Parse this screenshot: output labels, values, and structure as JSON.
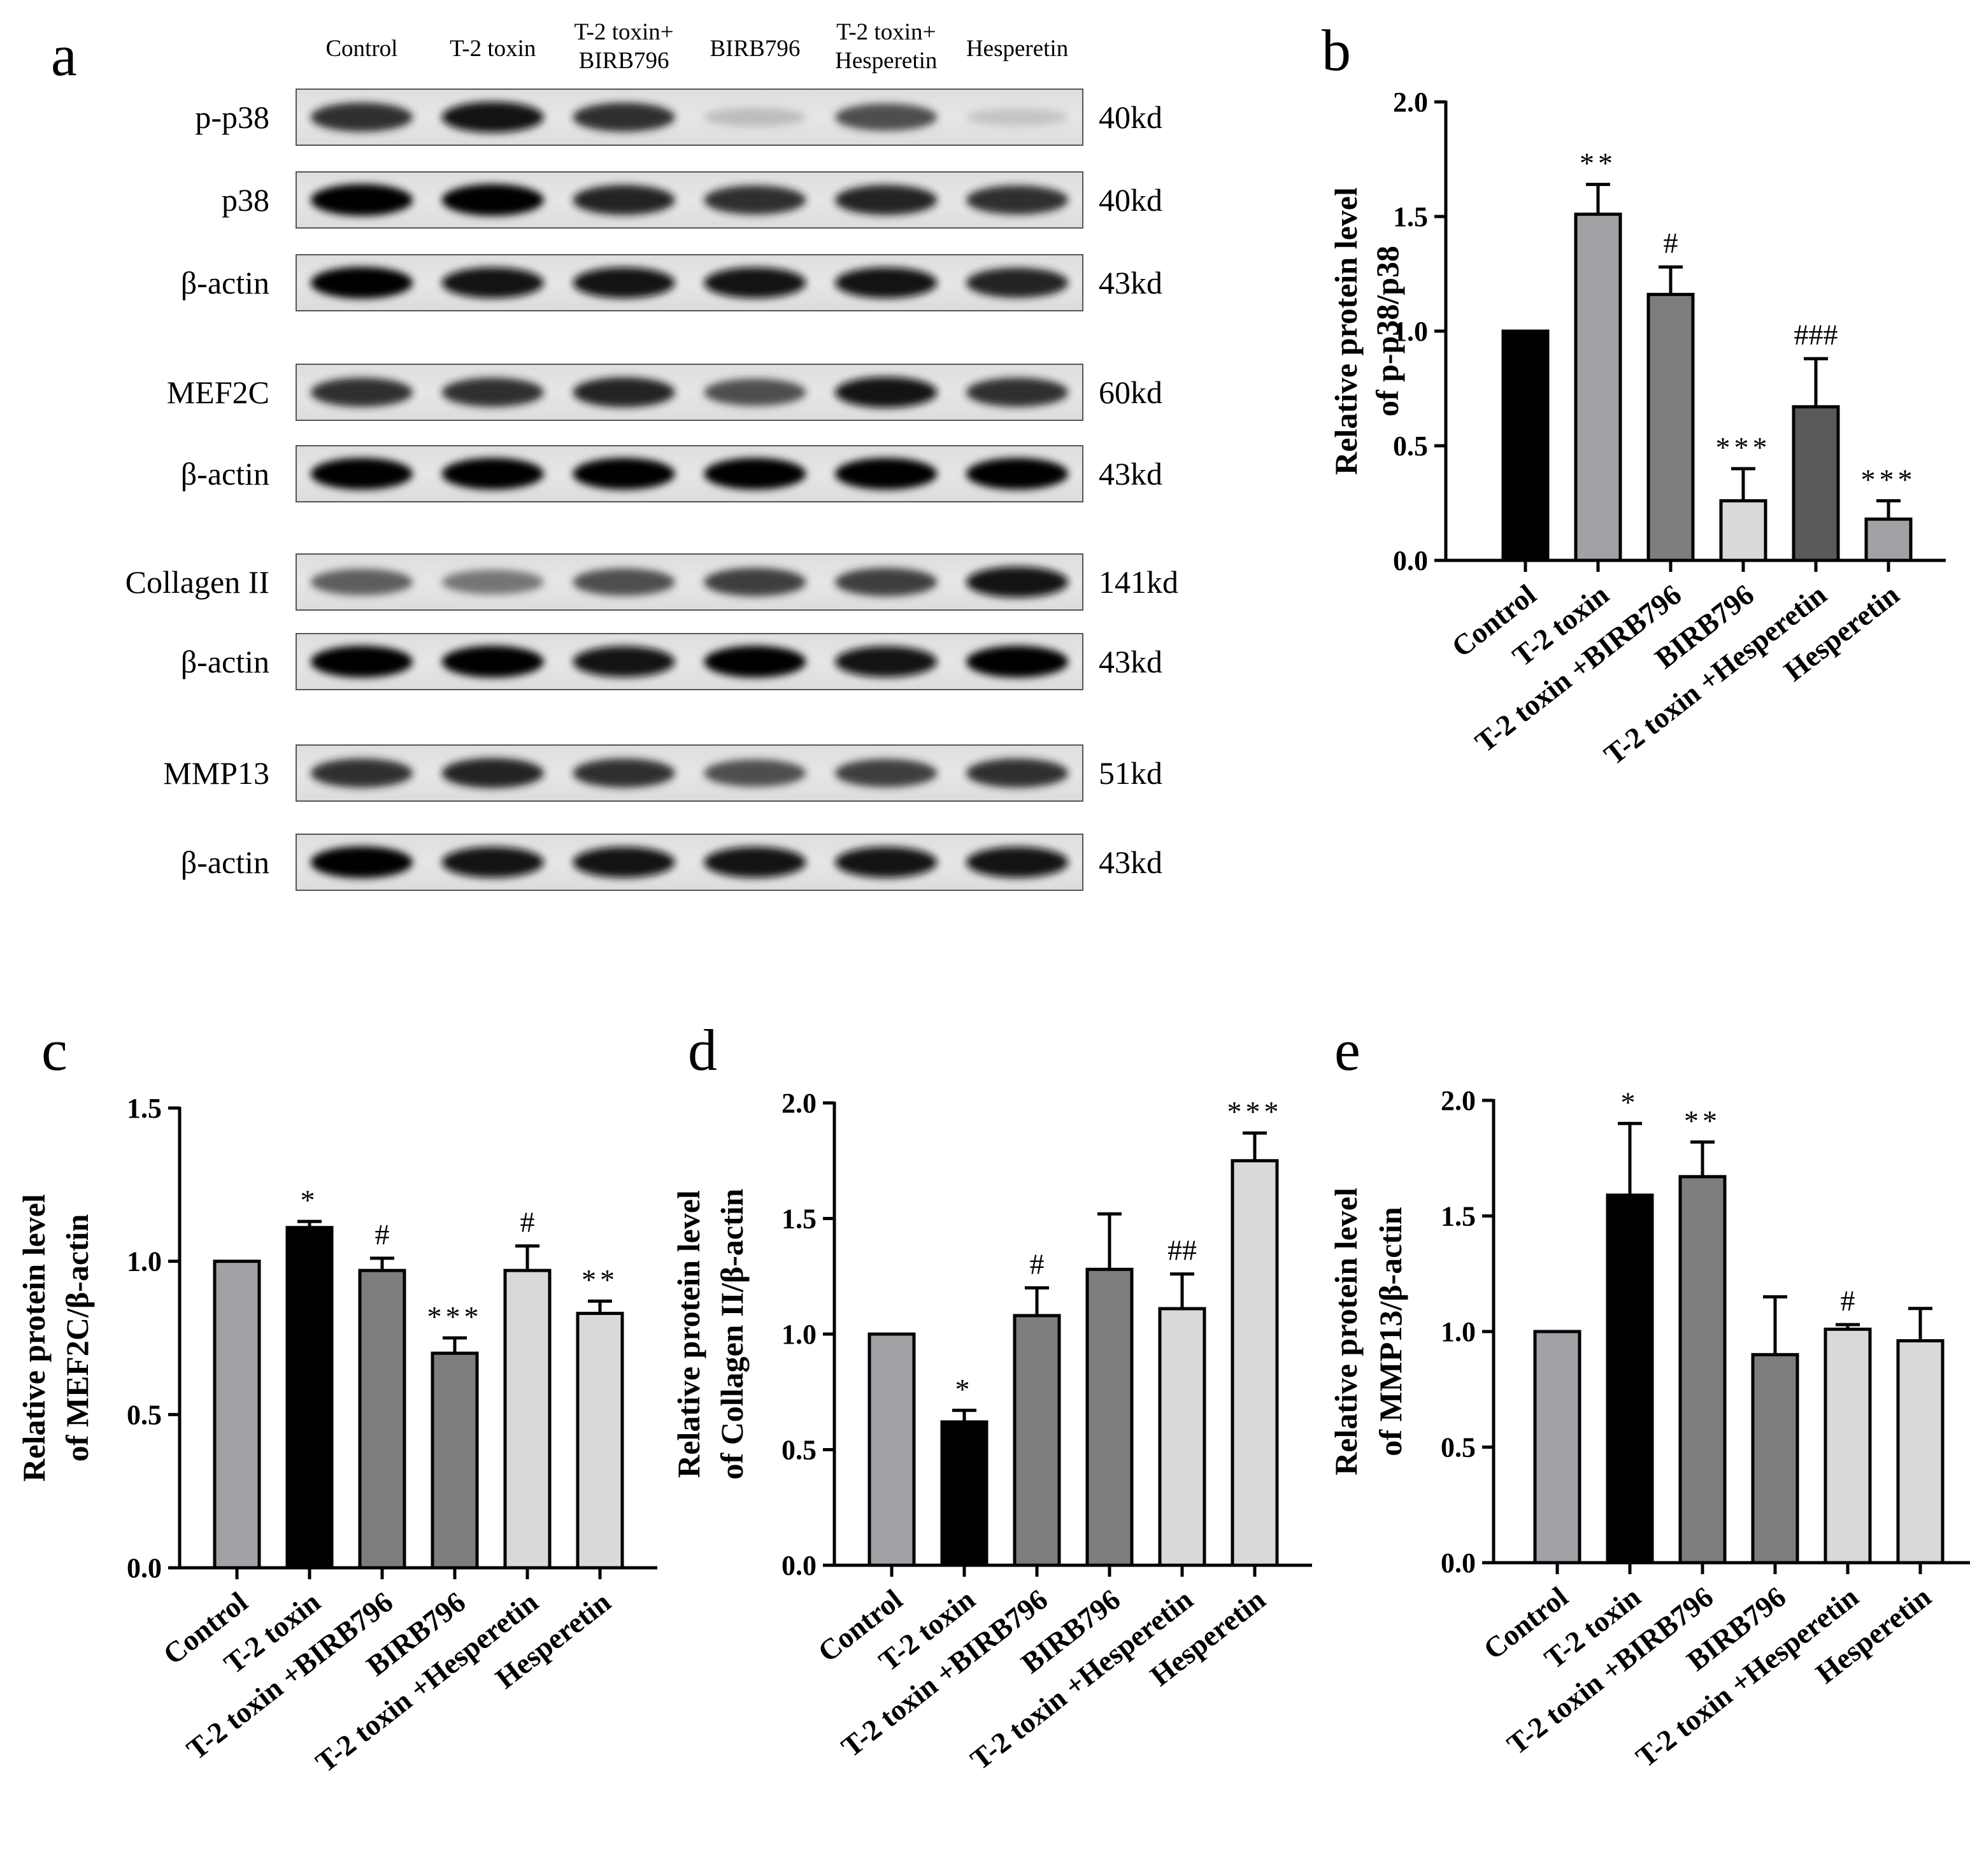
{
  "blot": {
    "letter": "a",
    "lanes": [
      [
        "Control"
      ],
      [
        "T-2 toxin"
      ],
      [
        "T-2 toxin+",
        "BIRB796"
      ],
      [
        "BIRB796"
      ],
      [
        "T-2 toxin+",
        "Hesperetin"
      ],
      [
        "Hesperetin"
      ]
    ],
    "rows": [
      {
        "name": "p-p38",
        "kd": "40kd",
        "intensity": [
          0.85,
          0.95,
          0.85,
          0.25,
          0.75,
          0.2
        ]
      },
      {
        "name": "p38",
        "kd": "40kd",
        "intensity": [
          1.0,
          1.0,
          0.9,
          0.85,
          0.9,
          0.85
        ]
      },
      {
        "name": "β-actin",
        "kd": "43kd",
        "intensity": [
          1.0,
          0.95,
          0.95,
          0.95,
          0.95,
          0.9
        ]
      },
      {
        "name": "MEF2C",
        "kd": "60kd",
        "intensity": [
          0.85,
          0.85,
          0.9,
          0.75,
          0.95,
          0.85
        ]
      },
      {
        "name": "β-actin",
        "kd": "43kd",
        "intensity": [
          1.0,
          1.0,
          1.0,
          1.0,
          1.0,
          1.0
        ]
      },
      {
        "name": "Collagen II",
        "kd": "141kd",
        "intensity": [
          0.7,
          0.6,
          0.75,
          0.8,
          0.8,
          0.95
        ]
      },
      {
        "name": "β-actin",
        "kd": "43kd",
        "intensity": [
          1.0,
          1.0,
          0.95,
          1.0,
          0.95,
          1.0
        ]
      },
      {
        "name": "MMP13",
        "kd": "51kd",
        "intensity": [
          0.85,
          0.9,
          0.85,
          0.75,
          0.8,
          0.85
        ]
      },
      {
        "name": "β-actin",
        "kd": "43kd",
        "intensity": [
          1.0,
          0.95,
          0.95,
          0.95,
          0.95,
          0.95
        ]
      }
    ]
  },
  "chart_data": [
    {
      "letter": "b",
      "type": "bar",
      "categories": [
        "Control",
        "T-2 toxin",
        "T-2 toxin +BIRB796",
        "BIRB796",
        "T-2 toxin +Hesperetin",
        "Hesperetin"
      ],
      "values": [
        1.0,
        1.51,
        1.16,
        0.26,
        0.67,
        0.18
      ],
      "errors": [
        0,
        0.13,
        0.12,
        0.14,
        0.21,
        0.08
      ],
      "significance": [
        "",
        "**",
        "#",
        "***",
        "###",
        "***"
      ],
      "colors": [
        "#000000",
        "#a1a1a6",
        "#7d7d7d",
        "#d9d9d9",
        "#5a5a5a",
        "#a1a1a6"
      ],
      "ylabel_lines": [
        "Relative protein level",
        "of p-p38/p38"
      ],
      "ylim": [
        0,
        2.0
      ],
      "yticks": [
        "0.0",
        "0.5",
        "1.0",
        "1.5",
        "2.0"
      ]
    },
    {
      "letter": "c",
      "type": "bar",
      "categories": [
        "Control",
        "T-2 toxin",
        "T-2 toxin +BIRB796",
        "BIRB796",
        "T-2 toxin +Hesperetin",
        "Hesperetin"
      ],
      "values": [
        1.0,
        1.11,
        0.97,
        0.7,
        0.97,
        0.83
      ],
      "errors": [
        0,
        0.02,
        0.04,
        0.05,
        0.08,
        0.04
      ],
      "significance": [
        "",
        "*",
        "#",
        "***",
        "#",
        "**"
      ],
      "colors": [
        "#a1a1a6",
        "#000000",
        "#7d7d7d",
        "#7d7d7d",
        "#d9d9d9",
        "#d9d9d9"
      ],
      "ylabel_lines": [
        "Relative protein level",
        "of MEF2C/β-actin"
      ],
      "ylim": [
        0,
        1.5
      ],
      "yticks": [
        "0.0",
        "0.5",
        "1.0",
        "1.5"
      ]
    },
    {
      "letter": "d",
      "type": "bar",
      "categories": [
        "Control",
        "T-2 toxin",
        "T-2 toxin +BIRB796",
        "BIRB796",
        "T-2 toxin +Hesperetin",
        "Hesperetin"
      ],
      "values": [
        1.0,
        0.62,
        1.08,
        1.28,
        1.11,
        1.75
      ],
      "errors": [
        0,
        0.05,
        0.12,
        0.24,
        0.15,
        0.12
      ],
      "significance": [
        "",
        "*",
        "#",
        "",
        "##",
        "***"
      ],
      "colors": [
        "#a1a1a6",
        "#000000",
        "#7d7d7d",
        "#7d7d7d",
        "#d9d9d9",
        "#d9d9d9"
      ],
      "ylabel_lines": [
        "Relative protein level",
        "of Collagen II/β-actin"
      ],
      "ylim": [
        0,
        2.0
      ],
      "yticks": [
        "0.0",
        "0.5",
        "1.0",
        "1.5",
        "2.0"
      ]
    },
    {
      "letter": "e",
      "type": "bar",
      "categories": [
        "Control",
        "T-2 toxin",
        "T-2 toxin +BIRB796",
        "BIRB796",
        "T-2 toxin +Hesperetin",
        "Hesperetin"
      ],
      "values": [
        1.0,
        1.59,
        1.67,
        0.9,
        1.01,
        0.96
      ],
      "errors": [
        0,
        0.31,
        0.15,
        0.25,
        0.02,
        0.14
      ],
      "significance": [
        "",
        "*",
        "**",
        "",
        "#",
        ""
      ],
      "colors": [
        "#a1a1a6",
        "#000000",
        "#7d7d7d",
        "#7d7d7d",
        "#d9d9d9",
        "#d9d9d9"
      ],
      "ylabel_lines": [
        "Relative protein level",
        "of MMP13/β-actin"
      ],
      "ylim": [
        0,
        2.0
      ],
      "yticks": [
        "0.0",
        "0.5",
        "1.0",
        "1.5",
        "2.0"
      ]
    }
  ]
}
